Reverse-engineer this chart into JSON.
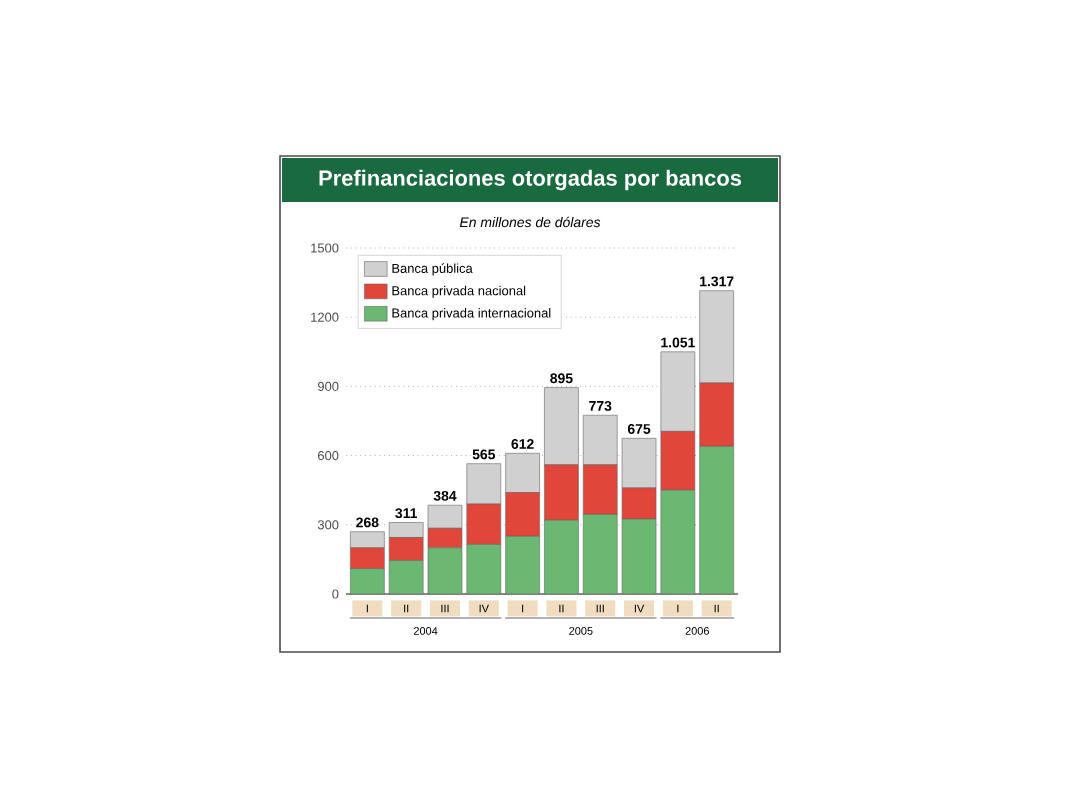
{
  "chart_data": {
    "type": "bar",
    "stacked": true,
    "title": "Prefinanciaciones otorgadas por bancos",
    "subtitle": "En millones de dólares",
    "categories": [
      "I",
      "II",
      "III",
      "IV",
      "I",
      "II",
      "III",
      "IV",
      "I",
      "II"
    ],
    "series": [
      {
        "name": "Banca privada internacional",
        "color": "#6ab872",
        "values": [
          110,
          145,
          200,
          215,
          250,
          320,
          345,
          325,
          450,
          640
        ]
      },
      {
        "name": "Banca privada nacional",
        "color": "#e0463a",
        "values": [
          90,
          100,
          85,
          175,
          190,
          240,
          215,
          135,
          255,
          275
        ]
      },
      {
        "name": "Banca pública",
        "color": "#d0d0d0",
        "values": [
          70,
          65,
          100,
          175,
          170,
          335,
          215,
          215,
          345,
          400
        ]
      }
    ],
    "totals": [
      "268",
      "311",
      "384",
      "565",
      "612",
      "895",
      "773",
      "675",
      "1.051",
      "1.317"
    ],
    "annotations": [
      "2004",
      "2005",
      "2006"
    ],
    "ylim": [
      0,
      1500
    ],
    "yticks": [
      0,
      300,
      600,
      900,
      1200,
      1500
    ],
    "grid": "y",
    "legend": "top left"
  }
}
